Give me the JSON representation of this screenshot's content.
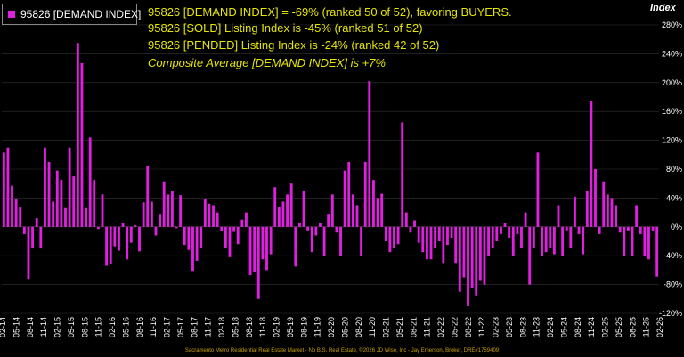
{
  "legend": {
    "label": "95826 [DEMAND INDEX]",
    "color": "#e020e0"
  },
  "annotations": [
    "95826 [DEMAND INDEX] = -69% (ranked 50 of 52), favoring BUYERS.",
    "95826 [SOLD] Listing Index is -45% (ranked 51 of 52)",
    "95826 [PENDED] Listing Index is -24% (ranked 42 of 52)",
    "Composite Average [DEMAND INDEX] is +7%"
  ],
  "y_axis_title": "Index",
  "footer": "Sacramento Metro Residential Real Estate Market - No B.S. Real Estate, ©2026 JD Wise, Inc - Jay Emerson, Broker, DRE#1759409",
  "colors": {
    "bar": "#e020e0",
    "background": "#000000",
    "annotation": "#e6e600",
    "grid": "#333333"
  },
  "chart_data": {
    "type": "bar",
    "title": "",
    "xlabel": "",
    "ylabel": "Index",
    "ylim": [
      -120,
      280
    ],
    "yticks": [
      -120,
      -80,
      -40,
      0,
      40,
      80,
      120,
      160,
      200,
      240,
      280
    ],
    "ytick_labels": [
      "-120%",
      "-80%",
      "-40%",
      "0%",
      "40%",
      "80%",
      "120%",
      "160%",
      "200%",
      "240%",
      "280%"
    ],
    "x_tick_labels": [
      "02-14",
      "05-14",
      "08-14",
      "11-14",
      "02-15",
      "05-15",
      "08-15",
      "11-15",
      "02-16",
      "05-16",
      "08-16",
      "11-16",
      "02-17",
      "05-17",
      "08-17",
      "11-17",
      "02-18",
      "05-18",
      "08-18",
      "11-18",
      "02-19",
      "05-19",
      "08-19",
      "11-19",
      "02-20",
      "05-20",
      "08-20",
      "11-20",
      "02-21",
      "05-21",
      "08-21",
      "11-21",
      "02-22",
      "05-22",
      "08-22",
      "11-22",
      "02-23",
      "05-23",
      "08-23",
      "11-23",
      "02-24",
      "05-24",
      "08-24",
      "11-24",
      "02-25",
      "05-25",
      "08-25",
      "11-25",
      "02-26"
    ],
    "series": [
      {
        "name": "95826 [DEMAND INDEX]",
        "values": [
          103,
          110,
          57,
          38,
          28,
          -10,
          -72,
          -30,
          12,
          -30,
          110,
          90,
          35,
          78,
          65,
          26,
          110,
          70,
          255,
          227,
          26,
          124,
          65,
          -3,
          45,
          -54,
          -52,
          -27,
          -33,
          5,
          -45,
          -22,
          2,
          -34,
          34,
          85,
          35,
          -12,
          18,
          63,
          45,
          50,
          -2,
          44,
          -25,
          -32,
          -61,
          -47,
          -30,
          38,
          32,
          30,
          20,
          -6,
          -30,
          -42,
          -7,
          -24,
          10,
          20,
          -67,
          -62,
          -100,
          -45,
          -60,
          -38,
          55,
          28,
          35,
          45,
          60,
          -55,
          6,
          50,
          -5,
          -35,
          -12,
          5,
          -40,
          18,
          45,
          -8,
          -40,
          78,
          90,
          45,
          30,
          -40,
          90,
          202,
          65,
          40,
          46,
          -20,
          -35,
          -30,
          -24,
          145,
          20,
          -8,
          9,
          -22,
          -35,
          -45,
          -45,
          -30,
          -20,
          -50,
          -25,
          -15,
          -50,
          -90,
          -70,
          -110,
          -85,
          -95,
          -75,
          -80,
          -40,
          -30,
          -20,
          -10,
          5,
          -15,
          -40,
          -10,
          -30,
          20,
          -80,
          -30,
          103,
          -40,
          -35,
          -30,
          -38,
          30,
          -40,
          -5,
          -30,
          42,
          -10,
          -38,
          50,
          175,
          80,
          -10,
          63,
          45,
          40,
          30,
          -8,
          -40,
          -5,
          -40,
          30,
          -10,
          -40,
          -45,
          -5,
          -69
        ]
      }
    ]
  }
}
